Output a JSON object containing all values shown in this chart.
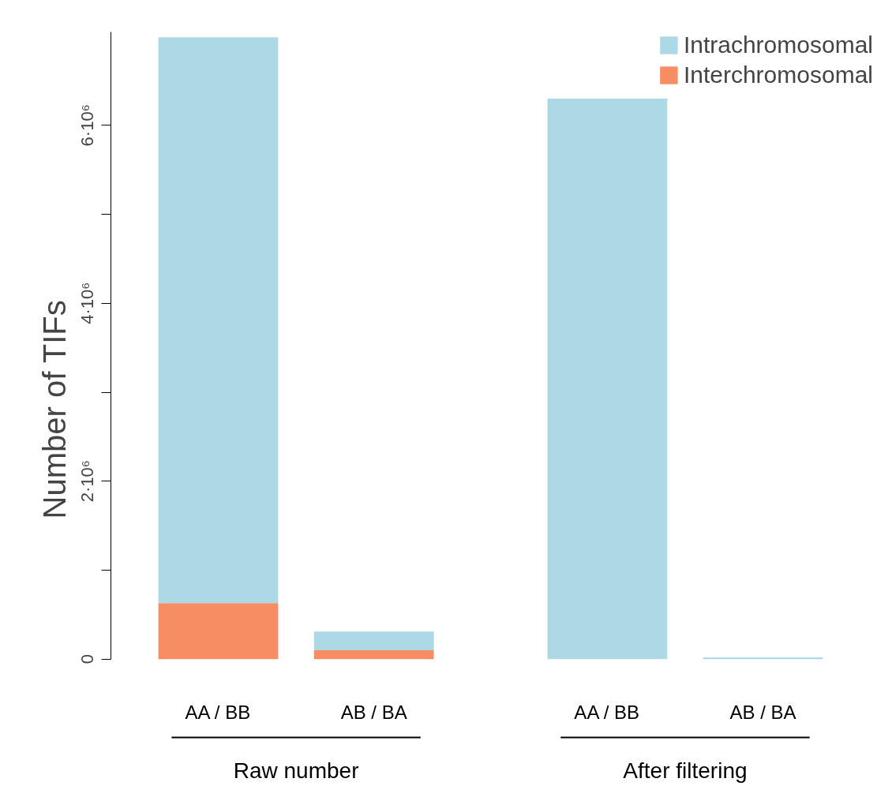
{
  "chart_data": {
    "type": "bar",
    "stacked": true,
    "ylabel": "Number of TIFs",
    "categories": [
      "AA / BB",
      "AB / BA",
      "AA / BB",
      "AB / BA"
    ],
    "series": [
      {
        "name": "Interchromosomal",
        "color": "#f68d63",
        "values": [
          630000,
          100000,
          0,
          0
        ]
      },
      {
        "name": "Intrachromosomal",
        "color": "#add8e6",
        "values": [
          6360000,
          210000,
          6300000,
          20000
        ]
      }
    ],
    "ylim": [
      0,
      7050000
    ],
    "yticks": [
      0,
      {
        "value": 1000000,
        "label": null
      },
      {
        "value": 2000000,
        "label": "2·10⁶"
      },
      {
        "value": 3000000,
        "label": null
      },
      {
        "value": 4000000,
        "label": "4·10⁶"
      },
      {
        "value": 5000000,
        "label": null
      },
      {
        "value": 6000000,
        "label": "6·10⁶"
      }
    ],
    "annotations": [
      "Raw number",
      "After filtering"
    ],
    "legend": "top right",
    "grid": false
  }
}
